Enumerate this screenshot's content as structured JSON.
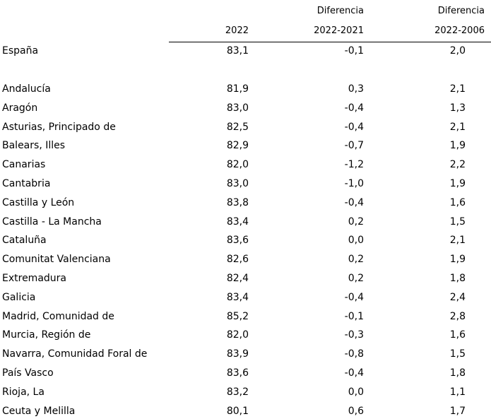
{
  "header": {
    "col1_line2": "2022",
    "col2_line1": "Diferencia",
    "col2_line2": "2022-2021",
    "col3_line1": "Diferencia",
    "col3_line2": "2022-2006"
  },
  "total": {
    "name": "España",
    "v2022": "83,1",
    "diff_2021": "-0,1",
    "diff_2006": "2,0"
  },
  "rows": [
    {
      "name": "Andalucía",
      "v2022": "81,9",
      "diff_2021": "0,3",
      "diff_2006": "2,1"
    },
    {
      "name": "Aragón",
      "v2022": "83,0",
      "diff_2021": "-0,4",
      "diff_2006": "1,3"
    },
    {
      "name": "Asturias, Principado de",
      "v2022": "82,5",
      "diff_2021": "-0,4",
      "diff_2006": "2,1"
    },
    {
      "name": "Balears, Illes",
      "v2022": "82,9",
      "diff_2021": "-0,7",
      "diff_2006": "1,9"
    },
    {
      "name": "Canarias",
      "v2022": "82,0",
      "diff_2021": "-1,2",
      "diff_2006": "2,2"
    },
    {
      "name": "Cantabria",
      "v2022": "83,0",
      "diff_2021": "-1,0",
      "diff_2006": "1,9"
    },
    {
      "name": "Castilla y León",
      "v2022": "83,8",
      "diff_2021": "-0,4",
      "diff_2006": "1,6"
    },
    {
      "name": "Castilla - La Mancha",
      "v2022": "83,4",
      "diff_2021": "0,2",
      "diff_2006": "1,5"
    },
    {
      "name": "Cataluña",
      "v2022": "83,6",
      "diff_2021": "0,0",
      "diff_2006": "2,1"
    },
    {
      "name": "Comunitat Valenciana",
      "v2022": "82,6",
      "diff_2021": "0,2",
      "diff_2006": "1,9"
    },
    {
      "name": "Extremadura",
      "v2022": "82,4",
      "diff_2021": "0,2",
      "diff_2006": "1,8"
    },
    {
      "name": "Galicia",
      "v2022": "83,4",
      "diff_2021": "-0,4",
      "diff_2006": "2,4"
    },
    {
      "name": "Madrid, Comunidad de",
      "v2022": "85,2",
      "diff_2021": "-0,1",
      "diff_2006": "2,8"
    },
    {
      "name": "Murcia, Región de",
      "v2022": "82,0",
      "diff_2021": "-0,3",
      "diff_2006": "1,6"
    },
    {
      "name": "Navarra, Comunidad Foral de",
      "v2022": "83,9",
      "diff_2021": "-0,8",
      "diff_2006": "1,5"
    },
    {
      "name": "País Vasco",
      "v2022": "83,6",
      "diff_2021": "-0,4",
      "diff_2006": "1,8"
    },
    {
      "name": "Rioja, La",
      "v2022": "83,2",
      "diff_2021": "0,0",
      "diff_2006": "1,1"
    },
    {
      "name": "Ceuta y Melilla",
      "v2022": "80,1",
      "diff_2021": "0,6",
      "diff_2006": "1,7"
    }
  ]
}
